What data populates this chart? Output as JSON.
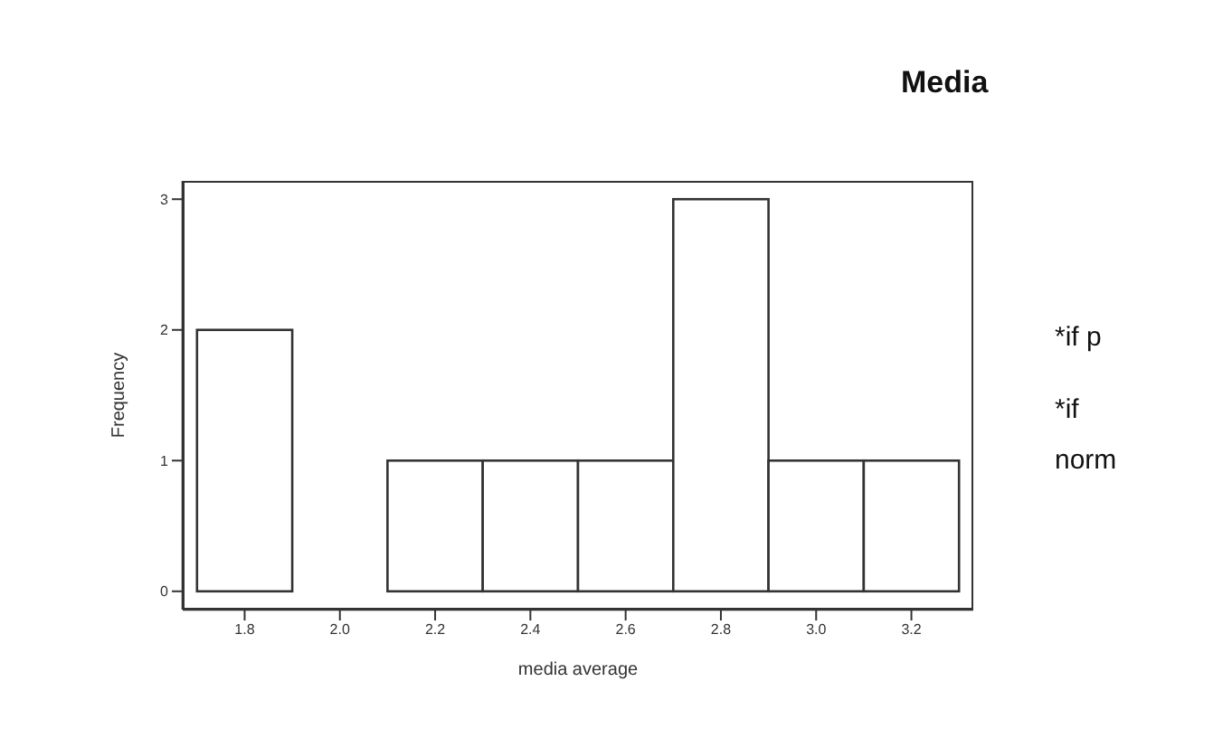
{
  "chart_data": {
    "type": "histogram",
    "title": "Media",
    "xlabel": "media average",
    "ylabel": "Frequency",
    "bins": [
      1.7,
      1.9,
      2.1,
      2.3,
      2.5,
      2.7,
      2.9,
      3.1,
      3.3
    ],
    "values": [
      2,
      0,
      1,
      1,
      1,
      3,
      1,
      1
    ],
    "color": "#ffffff",
    "xlim": [
      1.67,
      3.33
    ],
    "xticks": [
      1.8,
      {
        "value": 2,
        "label": "2.0"
      },
      2.2,
      2.4,
      2.6,
      2.8,
      {
        "value": 3,
        "label": "3.0"
      },
      3.2
    ],
    "ylim": [
      -0.14,
      3.14
    ],
    "yticks": [
      0,
      1,
      2,
      3
    ],
    "grid": false,
    "annotations": [
      "*if p",
      "*if",
      "norm"
    ]
  }
}
